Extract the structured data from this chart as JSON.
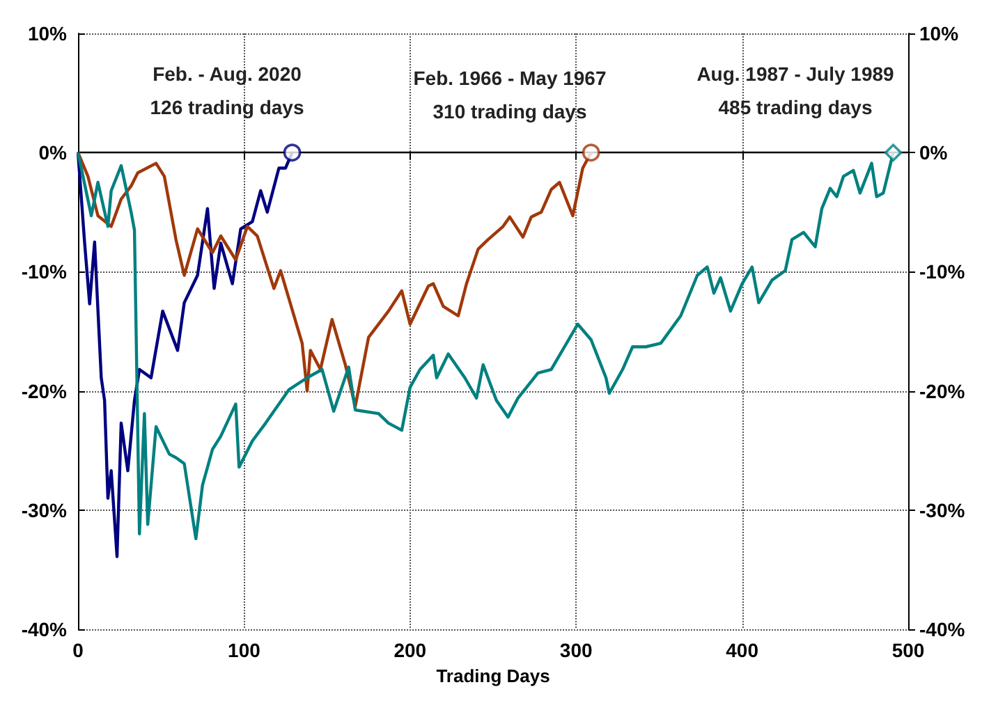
{
  "chart_data": {
    "type": "line",
    "xlabel": "Trading Days",
    "xlim": [
      0,
      500
    ],
    "xticks": [
      0,
      100,
      200,
      300,
      400,
      500
    ],
    "ylim": [
      -40,
      10
    ],
    "yticks": [
      {
        "value": -40,
        "label": "-40%"
      },
      {
        "value": -30,
        "label": "-30%"
      },
      {
        "value": -20,
        "label": "-20%"
      },
      {
        "value": -10,
        "label": "-10%"
      },
      {
        "value": 0,
        "label": "0%"
      },
      {
        "value": 10,
        "label": "10%"
      }
    ],
    "y2lim": [
      -40,
      10
    ],
    "y2ticks": [
      {
        "value": -40,
        "label": "-40%"
      },
      {
        "value": -30,
        "label": "-30%"
      },
      {
        "value": -20,
        "label": "-20%"
      },
      {
        "value": -10,
        "label": "-10%"
      },
      {
        "value": 0,
        "label": "0%"
      },
      {
        "value": 10,
        "label": "10%"
      }
    ],
    "grid": true,
    "line_style": "solid",
    "ref_lines": [
      {
        "axis": "y",
        "value": 0,
        "color": "#000000",
        "line_style": "solid"
      }
    ],
    "annotations": [
      "Feb. - Aug. 2020\n126 trading days",
      "Feb. 1966 - May 1967\n310 trading days",
      "Aug. 1987 - July 1989\n485 trading days"
    ],
    "series": [
      {
        "type": "scatter",
        "color": "#000080",
        "marker": "circle",
        "x": [
          129
        ],
        "values": [
          0
        ]
      },
      {
        "type": "scatter",
        "color": "#a0380a",
        "marker": "circle",
        "x": [
          309
        ],
        "values": [
          0
        ]
      },
      {
        "type": "scatter",
        "color": "#008080",
        "marker": "diamond",
        "x": [
          491
        ],
        "values": [
          0
        ]
      },
      {
        "color": "#000080",
        "x": [
          0,
          4,
          7,
          10,
          14,
          16,
          18,
          20,
          23.5,
          26,
          30,
          34,
          37,
          44,
          51,
          60,
          64,
          72,
          78,
          82,
          86,
          93,
          98,
          105,
          110,
          114,
          121,
          125,
          129
        ],
        "values": [
          0,
          -7.6,
          -12.7,
          -7.5,
          -18.9,
          -20.8,
          -29,
          -26.7,
          -33.9,
          -22.7,
          -26.7,
          -20.8,
          -18.2,
          -18.9,
          -13.3,
          -16.6,
          -12.6,
          -10.3,
          -4.7,
          -11.4,
          -7.6,
          -11,
          -6.4,
          -5.8,
          -3.2,
          -5,
          -1.3,
          -1.3,
          0
        ]
      },
      {
        "color": "#a0380a",
        "x": [
          0,
          6,
          12,
          20,
          26,
          32,
          36,
          47,
          52,
          59,
          64,
          72,
          81,
          86,
          95,
          102,
          108,
          118,
          122,
          135,
          138,
          140,
          146,
          153,
          161,
          167,
          175,
          187,
          195,
          200,
          211,
          214,
          220,
          229,
          234,
          241,
          247,
          256,
          260,
          268,
          273,
          279,
          285,
          290,
          294,
          298,
          304,
          309
        ],
        "values": [
          0,
          -2,
          -5.3,
          -6.2,
          -3.9,
          -2.8,
          -1.7,
          -0.9,
          -2,
          -7.3,
          -10.3,
          -6.4,
          -8.4,
          -7,
          -9,
          -6.2,
          -7,
          -11.4,
          -9.9,
          -16,
          -20,
          -16.6,
          -18.2,
          -14,
          -17.8,
          -21.3,
          -15.5,
          -13.3,
          -11.6,
          -14.4,
          -11.2,
          -11,
          -12.9,
          -13.7,
          -11,
          -8.1,
          -7.3,
          -6.2,
          -5.4,
          -7.1,
          -5.4,
          -5,
          -3.1,
          -2.5,
          -3.9,
          -5.3,
          -1.3,
          0
        ]
      },
      {
        "color": "#008080",
        "x": [
          0,
          8,
          12,
          18,
          20,
          26,
          32,
          34,
          37,
          40,
          42,
          47,
          55,
          59,
          64,
          71,
          75,
          81,
          86,
          95,
          97,
          105,
          113,
          127,
          138,
          147,
          154,
          163,
          167,
          181,
          187,
          195,
          200,
          206,
          214,
          216,
          223,
          233,
          240,
          244,
          252,
          259,
          265,
          277,
          285,
          293,
          301,
          309,
          318,
          320,
          328,
          334,
          342,
          351,
          363,
          373,
          379,
          383,
          387,
          393,
          400,
          406,
          410,
          418,
          426,
          430,
          437,
          444,
          448,
          453,
          457,
          461,
          467,
          471,
          478,
          481,
          485,
          491
        ],
        "values": [
          0,
          -5.3,
          -2.5,
          -6.2,
          -3.2,
          -1.1,
          -5,
          -6.5,
          -32,
          -21.9,
          -31.2,
          -23,
          -25.3,
          -25.6,
          -26.1,
          -32.4,
          -27.9,
          -24.9,
          -23.8,
          -21.1,
          -26.4,
          -24.2,
          -22.7,
          -19.9,
          -18.9,
          -18.2,
          -21.7,
          -18,
          -21.6,
          -21.9,
          -22.7,
          -23.3,
          -19.7,
          -18.2,
          -17,
          -18.9,
          -16.9,
          -18.9,
          -20.6,
          -17.8,
          -20.8,
          -22.2,
          -20.6,
          -18.5,
          -18.2,
          -16.3,
          -14.4,
          -15.7,
          -18.9,
          -20.2,
          -18.2,
          -16.3,
          -16.3,
          -16,
          -13.7,
          -10.3,
          -9.6,
          -11.8,
          -10.5,
          -13.3,
          -11,
          -9.6,
          -12.6,
          -10.7,
          -9.9,
          -7.3,
          -6.7,
          -7.9,
          -4.7,
          -3,
          -3.7,
          -2,
          -1.5,
          -3.4,
          -0.9,
          -3.7,
          -3.4,
          0
        ]
      }
    ]
  }
}
